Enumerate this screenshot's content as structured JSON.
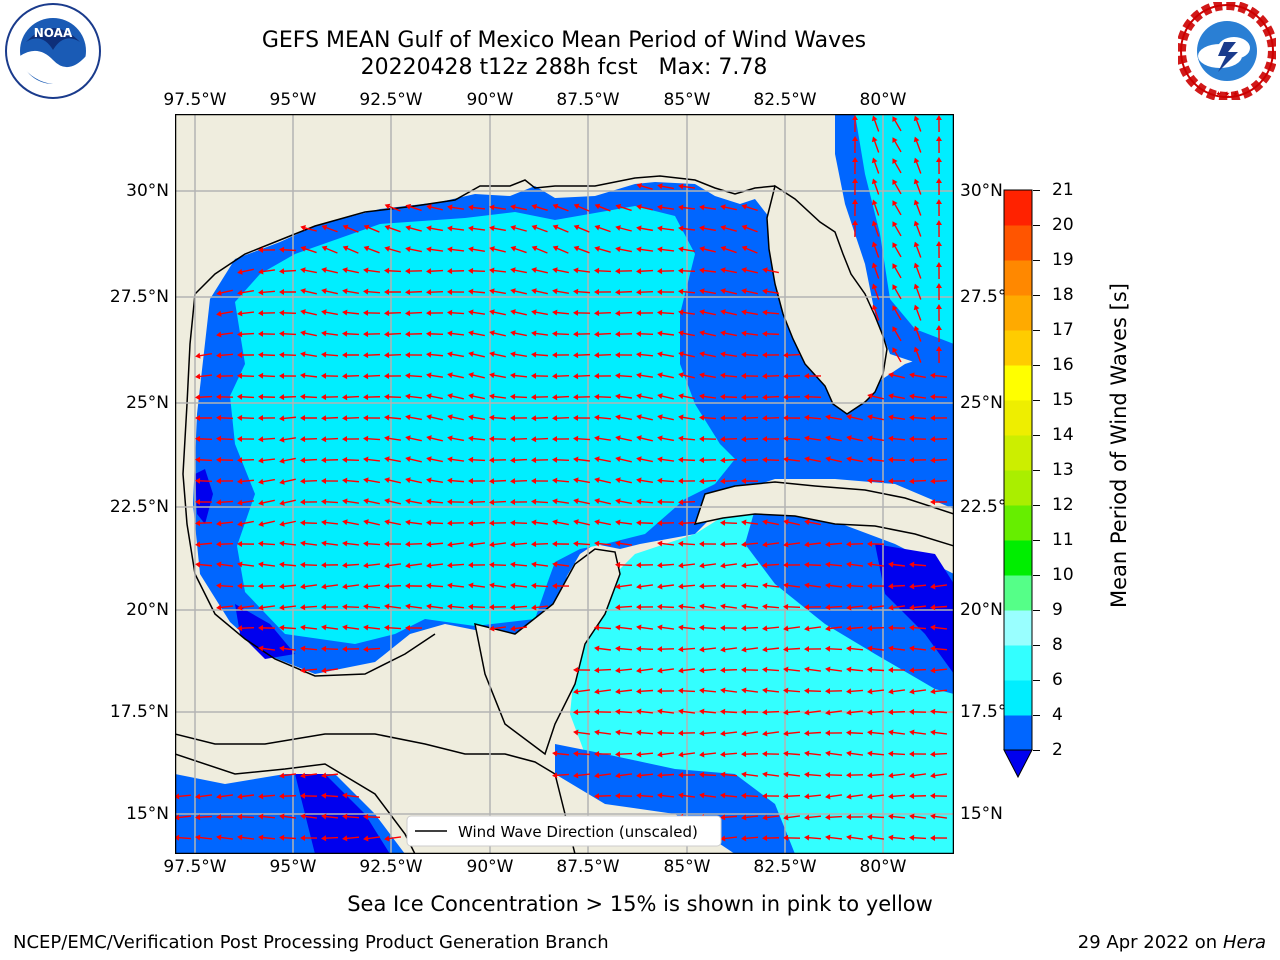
{
  "header": {
    "title_line1": "GEFS MEAN Gulf of Mexico Mean Period of Wind Waves",
    "title_line2": "20220428 t12z 288h fcst   Max: 7.78"
  },
  "logos": {
    "left": {
      "name": "noaa-logo",
      "text": "NOAA"
    },
    "right": {
      "name": "national-weather-service-logo",
      "text": "NATIONAL WEATHER SERVICE"
    }
  },
  "map": {
    "lon_labels": [
      "97.5°W",
      "95°W",
      "92.5°W",
      "90°W",
      "87.5°W",
      "85°W",
      "82.5°W",
      "80°W"
    ],
    "lat_labels": [
      "30°N",
      "27.5°N",
      "25°N",
      "22.5°N",
      "20°N",
      "17.5°N",
      "15°N"
    ],
    "legend": "Wind Wave Direction (unscaled)",
    "colors": {
      "land": "#efedde",
      "grid": "#b3b3b3",
      "arrows": "#ff0000",
      "coast": "#000000"
    }
  },
  "colorbar": {
    "label": "Mean Period of Wind Waves [s]",
    "ticks": [
      "2",
      "4",
      "6",
      "8",
      "9",
      "10",
      "11",
      "12",
      "13",
      "14",
      "15",
      "16",
      "17",
      "18",
      "19",
      "20",
      "21"
    ],
    "colors": [
      "#0066ff",
      "#00eeff",
      "#33ffff",
      "#99ffff",
      "#55ff88",
      "#00ee00",
      "#66ee00",
      "#aaee00",
      "#ccee00",
      "#eeee00",
      "#ffff00",
      "#ffcc00",
      "#ffaa00",
      "#ff8800",
      "#ff5500",
      "#ff2200"
    ],
    "under_color": "#0000ee"
  },
  "notes": {
    "sea_ice": "Sea Ice Concentration > 15% is shown in pink to yellow"
  },
  "footer": {
    "left": "NCEP/EMC/Verification Post Processing Product Generation Branch",
    "date": "29 Apr 2022 on",
    "host": "Hera"
  }
}
